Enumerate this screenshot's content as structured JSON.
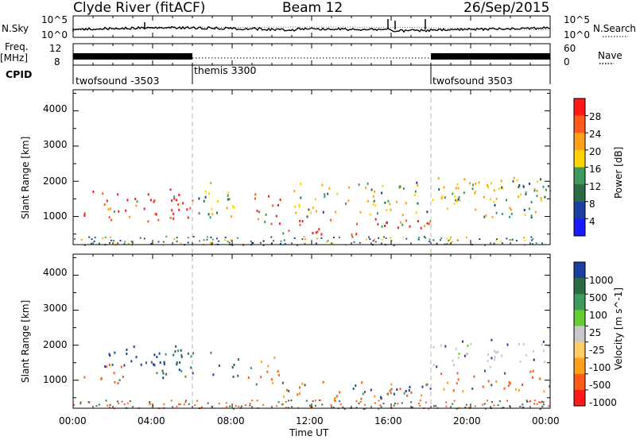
{
  "header": {
    "station": "Clyde River (fitACF)",
    "beam": "Beam 12",
    "date": "26/Sep/2015"
  },
  "side_labels": {
    "nsky": "N.Sky",
    "freq_line1": "Freq.",
    "freq_line2": "[MHz]",
    "cpid": "CPID",
    "nsearch": "N.Search",
    "nave": "Nave"
  },
  "top_axes": {
    "nsky_ticks": [
      "10^5",
      "10^0"
    ],
    "nsearch_ticks": [
      "10^5",
      "10^0"
    ],
    "freq_ticks": [
      "12",
      "8"
    ],
    "nave_ticks": [
      "60",
      "0"
    ]
  },
  "cpid_segments": [
    {
      "label": "twofsound -3503",
      "start": 0,
      "end": 6
    },
    {
      "label": "themis 3300",
      "start": 6,
      "end": 18
    },
    {
      "label": "twofsound 3503",
      "start": 18,
      "end": 24
    }
  ],
  "x_axis": {
    "label": "Time UT",
    "ticks": [
      "00:00",
      "04:00",
      "08:00",
      "12:00",
      "16:00",
      "20:00",
      "00:00"
    ]
  },
  "chart_data": [
    {
      "type": "heatmap",
      "name": "power",
      "ylabel": "Slant Range [km]",
      "ylim": [
        200,
        4600
      ],
      "yticks": [
        "1000",
        "2000",
        "3000",
        "4000"
      ],
      "xlim": [
        0,
        24
      ],
      "colorbar": {
        "label": "Power [dB]",
        "ticks": [
          "28",
          "24",
          "20",
          "16",
          "12",
          "8",
          "4"
        ],
        "colors": [
          "#ff1a1a",
          "#ff5a1a",
          "#ff9f1a",
          "#ffd400",
          "#3f9a5e",
          "#2d6b44",
          "#1a3fa0",
          "#1a1aff"
        ]
      },
      "bands": [
        {
          "t0": 0.5,
          "t1": 6,
          "r0": 800,
          "r1": 1800,
          "level": "strong"
        },
        {
          "t0": 6,
          "t1": 8.5,
          "r0": 1000,
          "r1": 2000,
          "level": "medium"
        },
        {
          "t0": 8.6,
          "t1": 10.4,
          "r0": 800,
          "r1": 1700,
          "level": "strong"
        },
        {
          "t0": 10.5,
          "t1": 18,
          "r0": 500,
          "r1": 1000,
          "level": "strong"
        },
        {
          "t0": 11,
          "t1": 24,
          "r0": 1000,
          "r1": 2000,
          "level": "medium"
        },
        {
          "t0": 18,
          "t1": 24,
          "r0": 1500,
          "r1": 2200,
          "level": "medium"
        }
      ]
    },
    {
      "type": "heatmap",
      "name": "velocity",
      "ylabel": "Slant Range [km]",
      "ylim": [
        200,
        4600
      ],
      "yticks": [
        "1000",
        "2000",
        "3000",
        "4000"
      ],
      "xlim": [
        0,
        24
      ],
      "colorbar": {
        "label": "Velocity [m s^-1]",
        "ticks": [
          "1000",
          "500",
          "100",
          "25",
          "-25",
          "-100",
          "-500",
          "-1000"
        ],
        "colors": [
          "#1a3fa0",
          "#2d6b44",
          "#3f9a5e",
          "#66cc33",
          "#c8c8c8",
          "#ffcc66",
          "#ff9f1a",
          "#ff5a1a",
          "#ff1a1a"
        ]
      },
      "bands": [
        {
          "t0": 0.5,
          "t1": 2.5,
          "r0": 900,
          "r1": 1600,
          "level": "orange"
        },
        {
          "t0": 1.5,
          "t1": 5.5,
          "r0": 1300,
          "r1": 2000,
          "level": "blue"
        },
        {
          "t0": 4,
          "t1": 8.5,
          "r0": 1100,
          "r1": 1900,
          "level": "green"
        },
        {
          "t0": 8.6,
          "t1": 10.4,
          "r0": 900,
          "r1": 1700,
          "level": "orange"
        },
        {
          "t0": 10.5,
          "t1": 18,
          "r0": 500,
          "r1": 1000,
          "level": "orange"
        },
        {
          "t0": 14,
          "t1": 18,
          "r0": 500,
          "r1": 900,
          "level": "blue"
        },
        {
          "t0": 18,
          "t1": 24,
          "r0": 1400,
          "r1": 2200,
          "level": "gray"
        },
        {
          "t0": 18,
          "t1": 24,
          "r0": 700,
          "r1": 1300,
          "level": "orange"
        }
      ]
    }
  ]
}
